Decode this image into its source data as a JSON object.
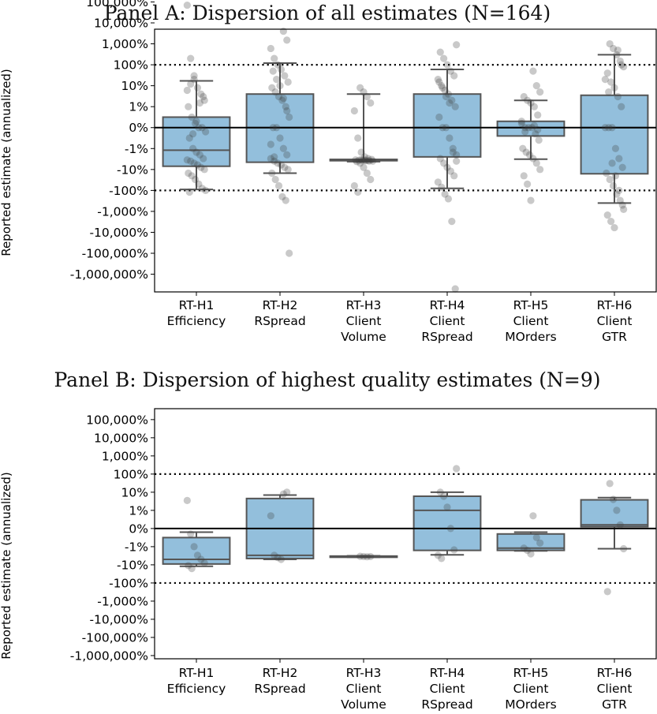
{
  "chart_data": [
    {
      "type": "box",
      "title": "Panel A: Dispersion of all estimates (N=164)",
      "ylabel": "Reported estimate (annualized)",
      "y_scale": "symlog",
      "y_tick_labels": [
        "100,000%",
        "10,000%",
        "1,000%",
        "100%",
        "10%",
        "1%",
        "0%",
        "-1%",
        "-10%",
        "-100%",
        "-1,000%",
        "-10,000%",
        "-100,000%",
        "-1,000,000%"
      ],
      "y_tick_values": [
        100000,
        10000,
        1000,
        100,
        10,
        1,
        0,
        -1,
        -10,
        -100,
        -1000,
        -10000,
        -100000,
        -1000000
      ],
      "reference_lines": [
        100,
        -100
      ],
      "zero_line": 0,
      "categories": [
        "RT-H1\nEfficiency",
        "RT-H2\nRSpread",
        "RT-H3\nClient\nVolume",
        "RT-H4\nClient\nRSpread",
        "RT-H5\nClient\nMOrders",
        "RT-H6\nClient\nGTR"
      ],
      "boxes": [
        {
          "whisker_low": -90,
          "q1": -7,
          "median": -1.2,
          "q3": 0.5,
          "whisker_high": 17
        },
        {
          "whisker_low": -15,
          "q1": -4.5,
          "median": 0,
          "q3": 4,
          "whisker_high": 120
        },
        {
          "whisker_low": -4.2,
          "q1": -3.8,
          "median": -3.6,
          "q3": -3.3,
          "whisker_high": 4
        },
        {
          "whisker_low": -80,
          "q1": -2.5,
          "median": 0,
          "q3": 4,
          "whisker_high": 60
        },
        {
          "whisker_low": -3.2,
          "q1": -0.4,
          "median": 0,
          "q3": 0.3,
          "whisker_high": 2
        },
        {
          "whisker_low": -400,
          "q1": -16,
          "median": 0,
          "q3": 3.5,
          "whisker_high": 300
        }
      ],
      "points": [
        [
          70000,
          200,
          20,
          8,
          4,
          2,
          1,
          0.5,
          0.2,
          0,
          0,
          -0.2,
          -0.5,
          -1,
          -1.5,
          -2,
          -3,
          -3.5,
          -4,
          -5,
          -6,
          -8,
          -10,
          -15,
          -20,
          -30,
          -50,
          -80,
          -100,
          -120,
          -0.3,
          0.3,
          1.5,
          3,
          6,
          12,
          30
        ],
        [
          4000,
          1500,
          600,
          200,
          100,
          60,
          30,
          15,
          8,
          5,
          3,
          2,
          1,
          0.5,
          0,
          0,
          -0.5,
          -1,
          -2,
          -3,
          -4,
          -5,
          -6,
          -8,
          -10,
          -15,
          -30,
          -60,
          -200,
          -300,
          -100000,
          50,
          20,
          10,
          2.5,
          0.8,
          -0.8,
          -2.5
        ],
        [
          8,
          5,
          3,
          1.5,
          0.8,
          -0.5,
          -1.5,
          -2.5,
          -3,
          -3.3,
          -3.5,
          -3.6,
          -3.7,
          -3.8,
          -3.9,
          -4,
          -4.2,
          -5,
          -8,
          -15,
          -30,
          -60,
          -120,
          -3.4,
          -3.6,
          -3.8
        ],
        [
          900,
          400,
          200,
          100,
          50,
          30,
          20,
          10,
          6,
          4,
          2,
          1,
          0.5,
          0,
          0,
          -0.5,
          -1,
          -2,
          -3,
          -5,
          -8,
          -12,
          -20,
          -40,
          -70,
          -150,
          -250,
          -3000,
          -5000000,
          15,
          8,
          3,
          1.5,
          -1.5,
          -4
        ],
        [
          50,
          10,
          5,
          3,
          2,
          1.5,
          1,
          0.6,
          0.3,
          0,
          0,
          0,
          -0.3,
          -0.6,
          -1,
          -1.5,
          -2,
          -3,
          -5,
          -10,
          -20,
          -50,
          -300,
          0.1,
          -0.1,
          0.2,
          -0.2
        ],
        [
          1000,
          600,
          300,
          150,
          80,
          40,
          15,
          8,
          3,
          1,
          0,
          0,
          0,
          -1,
          -3,
          -8,
          -15,
          -30,
          -60,
          -150,
          -300,
          -800,
          -1500,
          -3000,
          -6000,
          500,
          100,
          20,
          5,
          -5,
          -20,
          -100,
          -500
        ]
      ]
    },
    {
      "type": "box",
      "title": "Panel B: Dispersion of highest quality estimates (N=9)",
      "ylabel": "Reported estimate (annualized)",
      "y_scale": "symlog",
      "y_tick_labels": [
        "100,000%",
        "10,000%",
        "1,000%",
        "100%",
        "10%",
        "1%",
        "0%",
        "-1%",
        "-10%",
        "-100%",
        "-1,000%",
        "-10,000%",
        "-100,000%",
        "-1,000,000%"
      ],
      "y_tick_values": [
        100000,
        10000,
        1000,
        100,
        10,
        1,
        0,
        -1,
        -10,
        -100,
        -1000,
        -10000,
        -100000,
        -1000000
      ],
      "reference_lines": [
        100,
        -100
      ],
      "zero_line": 0,
      "categories": [
        "RT-H1\nEfficiency",
        "RT-H2\nRSpread",
        "RT-H3\nClient\nVolume",
        "RT-H4\nClient\nRSpread",
        "RT-H5\nClient\nMOrders",
        "RT-H6\nClient\nGTR"
      ],
      "boxes": [
        {
          "whisker_low": -12,
          "q1": -9,
          "median": -5,
          "q3": -0.5,
          "whisker_high": -0.2
        },
        {
          "whisker_low": -5,
          "q1": -4.5,
          "median": -3,
          "q3": 4.5,
          "whisker_high": 7
        },
        {
          "whisker_low": -3.8,
          "q1": -3.7,
          "median": -3.5,
          "q3": -3.3,
          "whisker_high": -3.2
        },
        {
          "whisker_low": -2.8,
          "q1": -1.6,
          "median": 1,
          "q3": 6,
          "whisker_high": 10
        },
        {
          "whisker_low": -1.7,
          "q1": -1.6,
          "median": -1.2,
          "q3": -0.3,
          "whisker_high": -0.2
        },
        {
          "whisker_low": -1.3,
          "q1": 0.1,
          "median": 0.2,
          "q3": 3.8,
          "whisker_high": 5
        }
      ],
      "points": [
        [
          3.5,
          -0.3,
          -1,
          -3,
          -5,
          -8,
          -11,
          -16
        ],
        [
          8,
          10,
          0.7,
          -3,
          -4,
          -5
        ],
        [
          -3.4,
          -3.5,
          -3.6,
          -3.5
        ],
        [
          200,
          10,
          6,
          1.5,
          0,
          -1.5,
          -3,
          -4.5
        ],
        [
          0.7,
          -0.5,
          -0.8,
          -1.2,
          -1.6,
          -2.5
        ],
        [
          30,
          4,
          1,
          0.2,
          -1.3,
          -300
        ]
      ]
    }
  ]
}
